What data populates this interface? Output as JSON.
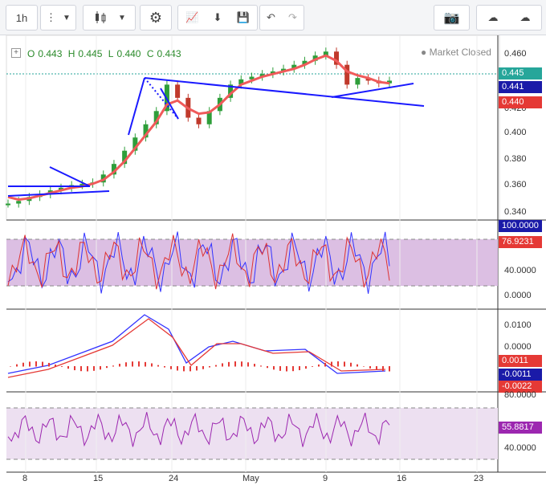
{
  "toolbar": {
    "interval": "1h",
    "tools": [
      "more-vertical-icon",
      "dropdown-icon",
      "candlestick-icon",
      "dropdown-icon",
      "gear-icon",
      "indicators-icon",
      "download-icon",
      "save-icon",
      "undo-icon",
      "redo-icon",
      "camera-icon",
      "cloud-download-icon",
      "cloud-upload-icon"
    ]
  },
  "legend": {
    "o_label": "O",
    "o_value": "0.443",
    "h_label": "H",
    "h_value": "0.445",
    "l_label": "L",
    "l_value": "0.440",
    "c_label": "C",
    "c_value": "0.443",
    "status": "Market Closed"
  },
  "price_axis": {
    "ticks": [
      "0.460",
      "0.420",
      "0.400",
      "0.380",
      "0.360",
      "0.340"
    ],
    "tags": [
      {
        "value": "0.445",
        "color": "#26a69a"
      },
      {
        "value": "0.441",
        "color": "#1a1aa8"
      },
      {
        "value": "0.440",
        "color": "#e53935"
      }
    ]
  },
  "rsi_axis": {
    "ticks": [
      "40.0000",
      "0.0000"
    ],
    "tags": [
      {
        "value": "100.0000",
        "color": "#1a1aa8"
      },
      {
        "value": "76.9231",
        "color": "#e53935"
      }
    ]
  },
  "macd_axis": {
    "ticks": [
      "0.0100",
      "0.0000"
    ],
    "tags": [
      {
        "value": "0.0011",
        "color": "#e53935"
      },
      {
        "value": "-0.0011",
        "color": "#1a1aa8"
      },
      {
        "value": "-0.0022",
        "color": "#e53935"
      }
    ]
  },
  "rsi2_axis": {
    "ticks": [
      "80.0000",
      "40.0000"
    ],
    "tags": [
      {
        "value": "55.8817",
        "color": "#9c27b0"
      }
    ]
  },
  "time_axis": [
    "8",
    "15",
    "24",
    "May",
    "9",
    "16",
    "23"
  ],
  "chart_data": {
    "type": "candlestick",
    "title": "",
    "ylim": [
      0.34,
      0.47
    ],
    "price_series": [
      0.35,
      0.352,
      0.355,
      0.357,
      0.36,
      0.362,
      0.364,
      0.365,
      0.366,
      0.372,
      0.38,
      0.39,
      0.4,
      0.41,
      0.42,
      0.44,
      0.43,
      0.415,
      0.41,
      0.42,
      0.43,
      0.44,
      0.444,
      0.446,
      0.448,
      0.45,
      0.452,
      0.455,
      0.458,
      0.462,
      0.465,
      0.455,
      0.44,
      0.445,
      0.443,
      0.441,
      0.443
    ],
    "ma_series": [
      0.355,
      0.353,
      0.354,
      0.356,
      0.358,
      0.36,
      0.362,
      0.363,
      0.365,
      0.368,
      0.374,
      0.382,
      0.392,
      0.402,
      0.412,
      0.425,
      0.428,
      0.422,
      0.418,
      0.419,
      0.425,
      0.433,
      0.44,
      0.443,
      0.446,
      0.448,
      0.45,
      0.452,
      0.455,
      0.459,
      0.462,
      0.458,
      0.45,
      0.447,
      0.445,
      0.442,
      0.441
    ]
  }
}
